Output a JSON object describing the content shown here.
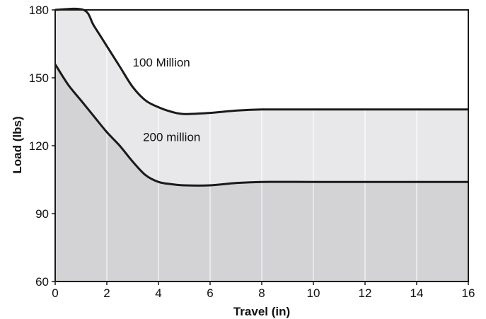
{
  "chart_data": {
    "type": "area",
    "xlabel": "Travel (in)",
    "ylabel": "Load (lbs)",
    "xlim": [
      0,
      16
    ],
    "ylim": [
      60,
      180
    ],
    "x_ticks": [
      "0",
      "2",
      "4",
      "6",
      "8",
      "10",
      "12",
      "14",
      "16"
    ],
    "y_ticks": [
      "60",
      "90",
      "120",
      "150",
      "180"
    ],
    "grid": true,
    "series": [
      {
        "name": "100 Million",
        "x": [
          0,
          1.1,
          1.5,
          2,
          2.5,
          3,
          3.5,
          4,
          4.5,
          5,
          6,
          7,
          8,
          10,
          12,
          14,
          16
        ],
        "y": [
          180,
          180,
          173,
          164,
          155,
          146,
          140,
          137,
          135,
          134,
          134.5,
          135.5,
          136,
          136,
          136,
          136,
          136
        ]
      },
      {
        "name": "200 million",
        "x": [
          0,
          0.5,
          1,
          1.5,
          2,
          2.5,
          3,
          3.5,
          4,
          4.5,
          5,
          6,
          7,
          8,
          10,
          12,
          14,
          16
        ],
        "y": [
          156,
          147,
          140,
          133,
          126,
          120,
          113,
          107,
          104,
          103,
          102.5,
          102.5,
          103.5,
          104,
          104,
          104,
          104,
          104
        ]
      }
    ],
    "annotations": [
      {
        "text": "100 Million",
        "x": 3.0,
        "y": 155
      },
      {
        "text": "200 million",
        "x": 3.4,
        "y": 122
      }
    ],
    "colors": {
      "upper_band": "#e8e8ea",
      "lower_band": "#d3d3d6",
      "line": "#1a1a1a",
      "grid": "#ffffff"
    }
  }
}
